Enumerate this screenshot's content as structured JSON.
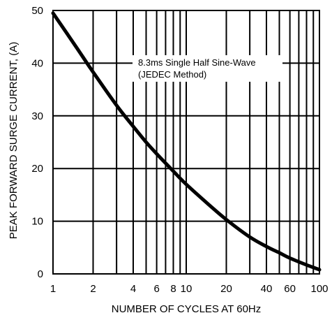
{
  "chart_data": {
    "type": "line",
    "title": "",
    "xlabel": "NUMBER OF CYCLES AT 60Hz",
    "ylabel": "PEAK FORWARD SURGE CURRENT, (A)",
    "x_scale": "log",
    "xlim": [
      1,
      100
    ],
    "ylim": [
      0,
      50
    ],
    "grid": true,
    "x_ticks": [
      1,
      2,
      4,
      6,
      8,
      10,
      20,
      40,
      60,
      100
    ],
    "x_tick_labels": [
      "1",
      "2",
      "4",
      "6",
      "8",
      "10",
      "20",
      "40",
      "60",
      "100"
    ],
    "y_ticks": [
      0,
      10,
      20,
      30,
      40,
      50
    ],
    "y_tick_labels": [
      "0",
      "10",
      "20",
      "30",
      "40",
      "50"
    ],
    "annotation": {
      "line1": "8.3ms Single Half Sine-Wave",
      "line2": "(JEDEC Method)"
    },
    "series": [
      {
        "x": [
          1,
          1.5,
          2,
          3,
          4,
          5,
          6,
          8,
          10,
          15,
          20,
          30,
          40,
          50,
          60,
          80,
          100
        ],
        "y": [
          49.5,
          43,
          38.3,
          32,
          28,
          25,
          22.8,
          19.5,
          17,
          13,
          10.3,
          7,
          5.2,
          4,
          3,
          1.7,
          0.8
        ]
      }
    ],
    "line_color": "#000000"
  }
}
